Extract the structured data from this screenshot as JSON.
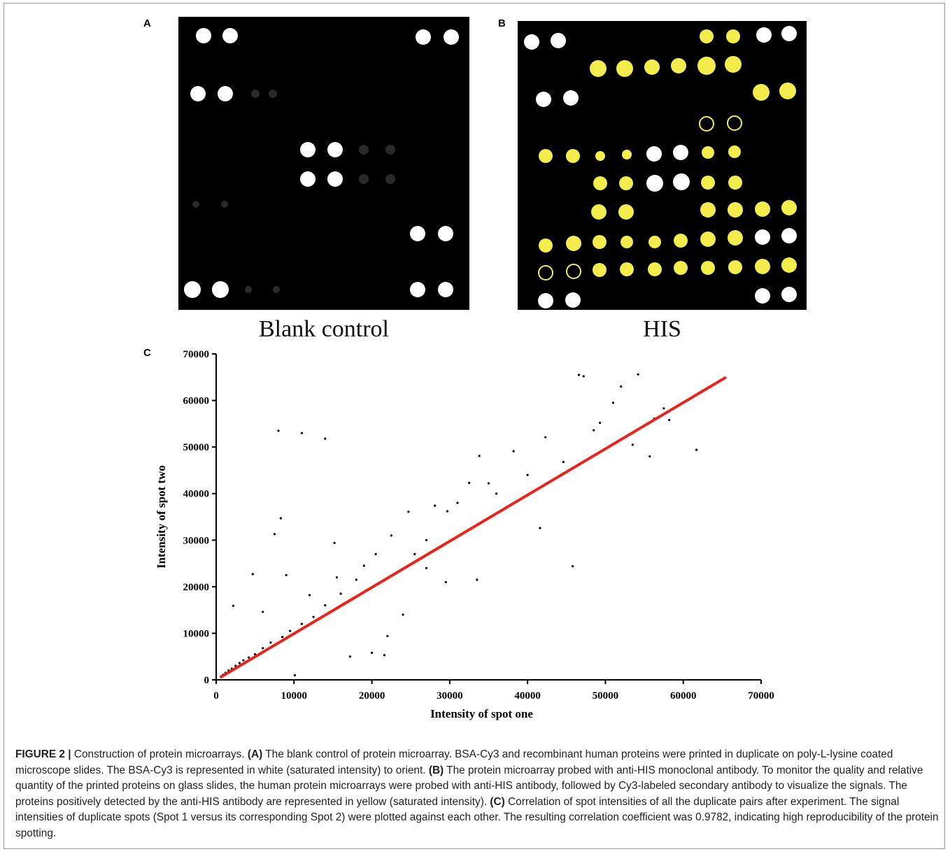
{
  "panels": {
    "A": {
      "letter": "A",
      "caption": "Blank control"
    },
    "B": {
      "letter": "B",
      "caption": "HIS"
    },
    "C": {
      "letter": "C"
    }
  },
  "colors": {
    "spot_white": "#ffffff",
    "spot_yellow": "#f2ec4c",
    "spot_dim": "#2a2a2a",
    "fit_line": "#e8241c",
    "points": "#000000"
  },
  "chart_data": {
    "type": "scatter",
    "title": "",
    "xlabel": "Intensity of spot one",
    "ylabel": "Intensity of spot two",
    "xlim": [
      0,
      70000
    ],
    "ylim": [
      0,
      70000
    ],
    "xticks": [
      "0",
      "10000",
      "20000",
      "30000",
      "40000",
      "50000",
      "60000",
      "70000"
    ],
    "yticks": [
      "0",
      "10000",
      "20000",
      "30000",
      "40000",
      "50000",
      "60000",
      "70000"
    ],
    "grid": false,
    "fit_line": {
      "x": [
        500,
        65500
      ],
      "y": [
        500,
        65000
      ]
    },
    "series": [
      {
        "points": [
          [
            8000,
            53500
          ],
          [
            11000,
            53000
          ],
          [
            14000,
            51800
          ],
          [
            8300,
            34700
          ],
          [
            7500,
            31300
          ],
          [
            4700,
            22700
          ],
          [
            2200,
            15900
          ],
          [
            46600,
            65500
          ],
          [
            47200,
            65200
          ],
          [
            54200,
            65600
          ],
          [
            51000,
            59500
          ],
          [
            52000,
            63000
          ],
          [
            45800,
            24400
          ],
          [
            42300,
            52100
          ],
          [
            41600,
            32600
          ],
          [
            38200,
            49100
          ],
          [
            33800,
            48100
          ],
          [
            32500,
            42300
          ],
          [
            35000,
            42200
          ],
          [
            28100,
            37400
          ],
          [
            29700,
            36200
          ],
          [
            24700,
            36100
          ],
          [
            15200,
            29400
          ],
          [
            20500,
            27000
          ],
          [
            22500,
            31000
          ],
          [
            27000,
            24000
          ],
          [
            33500,
            21500
          ],
          [
            29500,
            21000
          ],
          [
            24000,
            14000
          ],
          [
            22000,
            9400
          ],
          [
            20000,
            5800
          ],
          [
            21600,
            5300
          ],
          [
            17200,
            5000
          ],
          [
            10100,
            1000
          ],
          [
            6000,
            14600
          ],
          [
            9000,
            22500
          ],
          [
            12000,
            18200
          ],
          [
            15500,
            22000
          ],
          [
            55700,
            48000
          ],
          [
            53500,
            50500
          ],
          [
            61700,
            49400
          ],
          [
            58200,
            55800
          ],
          [
            56300,
            56100
          ],
          [
            57500,
            58300
          ],
          [
            49300,
            55200
          ],
          [
            48500,
            53600
          ],
          [
            44600,
            46800
          ],
          [
            40000,
            44000
          ],
          [
            36000,
            40000
          ],
          [
            31000,
            38000
          ],
          [
            27000,
            30000
          ],
          [
            25500,
            27000
          ],
          [
            18000,
            21500
          ],
          [
            19000,
            24500
          ],
          [
            16000,
            18500
          ],
          [
            14000,
            16000
          ],
          [
            12500,
            13500
          ],
          [
            11000,
            12000
          ],
          [
            9500,
            10500
          ],
          [
            8500,
            9200
          ],
          [
            7000,
            8000
          ],
          [
            6000,
            6800
          ],
          [
            5000,
            5500
          ],
          [
            4200,
            4800
          ],
          [
            3500,
            4200
          ],
          [
            3000,
            3600
          ],
          [
            2500,
            3000
          ],
          [
            2000,
            2400
          ],
          [
            1600,
            2000
          ],
          [
            1200,
            1500
          ],
          [
            900,
            1100
          ],
          [
            700,
            800
          ]
        ]
      }
    ]
  },
  "caption": {
    "label": "FIGURE 2 |",
    "intro": " Construction of protein microarrays. ",
    "a_label": "(A)",
    "a_text": " The blank control of protein microarray. BSA-Cy3 and recombinant human proteins were printed in duplicate on poly-L-lysine coated microscope slides. The BSA-Cy3 is represented in white (saturated intensity) to orient. ",
    "b_label": "(B)",
    "b_text": " The protein microarray probed with anti-HIS monoclonal antibody. To monitor the quality and relative quantity of the printed proteins on glass slides, the human protein microarrays were probed with anti-HIS antibody, followed by Cy3-labeled secondary antibody to visualize the signals. The proteins positively detected by the anti-HIS antibody are represented in yellow (saturated intensity). ",
    "c_label": "(C)",
    "c_text": " Correlation of spot intensities of all the duplicate pairs after experiment. The signal intensities of duplicate spots (Spot 1 versus its corresponding Spot 2) were plotted against each other. The resulting correlation coefficient was 0.9782, indicating high reproducibility of the protein spotting."
  }
}
